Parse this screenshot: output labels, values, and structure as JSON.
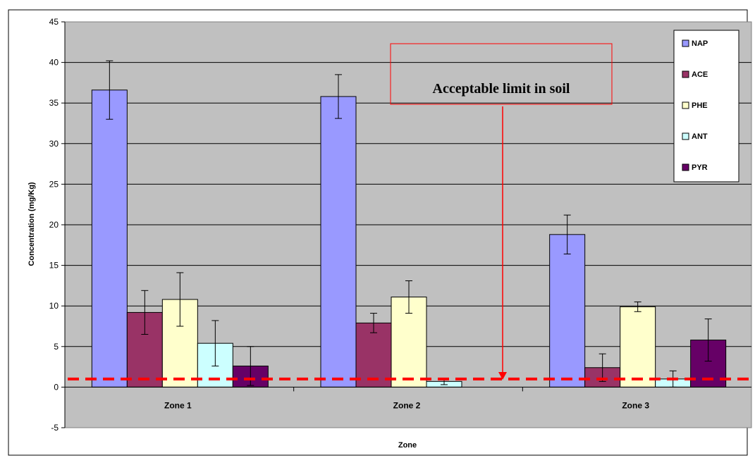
{
  "chart_data": {
    "type": "bar",
    "title": "",
    "xlabel": "Zone",
    "ylabel": "Concentration (mg/Kg)",
    "ylim": [
      -5,
      45
    ],
    "yticks": [
      -5,
      0,
      5,
      10,
      15,
      20,
      25,
      30,
      35,
      40,
      45
    ],
    "grid": true,
    "legend_position": "top-right",
    "categories": [
      "Zone 1",
      "Zone 2",
      "Zone 3"
    ],
    "series": [
      {
        "name": "NAP",
        "color": "#9999FF",
        "values": [
          36.6,
          35.8,
          18.8
        ],
        "errors": [
          3.6,
          2.7,
          2.4
        ]
      },
      {
        "name": "ACE",
        "color": "#993366",
        "values": [
          9.2,
          7.9,
          2.4
        ],
        "errors": [
          2.7,
          1.2,
          1.7
        ]
      },
      {
        "name": "PHE",
        "color": "#FFFFCC",
        "values": [
          10.8,
          11.1,
          9.9
        ],
        "errors": [
          3.3,
          2.0,
          0.6
        ]
      },
      {
        "name": "ANT",
        "color": "#CCFFFF",
        "values": [
          5.4,
          0.7,
          1.0
        ],
        "errors": [
          2.8,
          0.4,
          1.0
        ]
      },
      {
        "name": "PYR",
        "color": "#660066",
        "values": [
          2.6,
          null,
          5.8
        ],
        "errors": [
          2.4,
          null,
          2.6
        ]
      }
    ],
    "reference_line": {
      "value": 1,
      "color": "#FF0000",
      "style": "dashed"
    },
    "annotation": {
      "text": "Acceptable limit in soil",
      "color": "#FF0000"
    },
    "colors": {
      "plot_background": "#C0C0C0",
      "gridline": "#000000"
    }
  }
}
